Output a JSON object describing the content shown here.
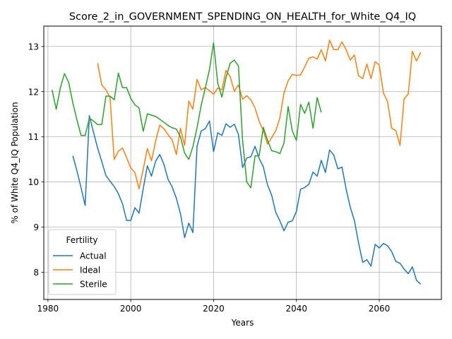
{
  "chart_data": {
    "type": "line",
    "title": "Score_2_in_GOVERNMENT_SPENDING_ON_HEALTH_for_White_Q4_IQ",
    "xlabel": "Years",
    "ylabel": "% of White Q4_IQ Population",
    "xlim": [
      1979,
      2075
    ],
    "ylim": [
      7.4,
      13.45
    ],
    "xticks": [
      1980,
      2000,
      2020,
      2040,
      2060
    ],
    "yticks": [
      8,
      9,
      10,
      11,
      12,
      13
    ],
    "grid": true,
    "legend": {
      "title": "Fertility",
      "placement": "lower-left"
    },
    "series": [
      {
        "name": "Actual",
        "color": "#1f77b4",
        "x": [
          1986,
          1987,
          1988,
          1989,
          1990,
          1991,
          1992,
          1993,
          1994,
          1995,
          1996,
          1997,
          1998,
          1999,
          2000,
          2001,
          2002,
          2003,
          2004,
          2005,
          2006,
          2007,
          2008,
          2009,
          2010,
          2011,
          2012,
          2013,
          2014,
          2015,
          2016,
          2017,
          2018,
          2019,
          2020,
          2021,
          2022,
          2023,
          2024,
          2025,
          2026,
          2027,
          2028,
          2029,
          2030,
          2031,
          2032,
          2033,
          2034,
          2035,
          2036,
          2037,
          2038,
          2039,
          2040,
          2041,
          2042,
          2043,
          2044,
          2045,
          2046,
          2047,
          2048,
          2049,
          2050,
          2051,
          2052,
          2053,
          2054,
          2055,
          2056,
          2057,
          2058,
          2059,
          2060,
          2061,
          2062,
          2063,
          2064,
          2065,
          2066,
          2067,
          2068,
          2069,
          2070
        ],
        "values": [
          10.58,
          10.25,
          9.87,
          9.48,
          11.47,
          11.1,
          10.75,
          10.45,
          10.14,
          10.02,
          9.9,
          9.74,
          9.52,
          9.15,
          9.15,
          9.43,
          9.31,
          9.85,
          10.36,
          10.13,
          10.46,
          10.61,
          10.39,
          10.06,
          9.89,
          9.64,
          9.3,
          8.77,
          9.09,
          8.88,
          10.79,
          11.13,
          11.18,
          11.35,
          10.67,
          11.09,
          11.03,
          11.29,
          11.21,
          11.28,
          11.05,
          10.32,
          10.53,
          10.56,
          10.79,
          10.52,
          10.34,
          9.94,
          9.71,
          9.33,
          9.14,
          8.92,
          9.11,
          9.14,
          9.35,
          9.84,
          9.88,
          9.95,
          10.22,
          10.13,
          10.48,
          10.21,
          10.71,
          10.6,
          10.29,
          10.33,
          9.84,
          9.44,
          9.15,
          8.65,
          8.22,
          8.28,
          8.14,
          8.62,
          8.54,
          8.64,
          8.59,
          8.46,
          8.24,
          8.2,
          8.07,
          7.97,
          8.12,
          7.82,
          7.74
        ]
      },
      {
        "name": "Ideal",
        "color": "#ff7f0e",
        "x": [
          1992,
          1993,
          1994,
          1995,
          1996,
          1997,
          1998,
          1999,
          2000,
          2001,
          2002,
          2003,
          2004,
          2005,
          2006,
          2007,
          2008,
          2009,
          2010,
          2011,
          2012,
          2013,
          2014,
          2015,
          2016,
          2017,
          2018,
          2019,
          2020,
          2021,
          2022,
          2023,
          2024,
          2025,
          2026,
          2027,
          2028,
          2029,
          2030,
          2031,
          2032,
          2033,
          2034,
          2035,
          2036,
          2037,
          2038,
          2039,
          2040,
          2041,
          2042,
          2043,
          2044,
          2045,
          2046,
          2047,
          2048,
          2049,
          2050,
          2051,
          2052,
          2053,
          2054,
          2055,
          2056,
          2057,
          2058,
          2059,
          2060,
          2061,
          2062,
          2063,
          2064,
          2065,
          2066,
          2067,
          2068,
          2069,
          2070
        ],
        "values": [
          12.63,
          12.15,
          12.04,
          11.87,
          10.5,
          10.68,
          10.75,
          10.54,
          10.31,
          10.21,
          9.85,
          10.28,
          10.74,
          10.47,
          10.9,
          11.26,
          11.18,
          11.05,
          10.93,
          10.61,
          11.19,
          10.81,
          11.79,
          11.61,
          12.27,
          12.04,
          12.09,
          12.02,
          11.94,
          12.08,
          12.04,
          12.47,
          12.33,
          12.01,
          12.15,
          11.83,
          11.91,
          11.82,
          11.64,
          11.34,
          11.14,
          10.84,
          10.98,
          11.13,
          11.42,
          11.97,
          12.24,
          12.38,
          12.36,
          12.37,
          12.55,
          12.74,
          12.77,
          12.72,
          12.93,
          12.68,
          13.14,
          12.93,
          12.93,
          13.1,
          12.93,
          12.7,
          12.81,
          12.35,
          12.29,
          12.61,
          12.29,
          12.66,
          12.59,
          11.97,
          11.78,
          11.19,
          11.14,
          10.81,
          11.84,
          11.95,
          12.89,
          12.68,
          12.87
        ]
      },
      {
        "name": "Sterile",
        "color": "#2ca02c",
        "x": [
          1981,
          1982,
          1983,
          1984,
          1985,
          1986,
          1987,
          1988,
          1989,
          1990,
          1991,
          1992,
          1993,
          1994,
          1995,
          1996,
          1997,
          1998,
          1999,
          2000,
          2001,
          2002,
          2003,
          2004,
          2005,
          2006,
          2007,
          2008,
          2009,
          2010,
          2011,
          2012,
          2013,
          2014,
          2015,
          2016,
          2017,
          2018,
          2019,
          2020,
          2021,
          2022,
          2023,
          2024,
          2025,
          2026,
          2027,
          2028,
          2029,
          2030,
          2031,
          2032,
          2033,
          2034,
          2035,
          2036,
          2037,
          2038,
          2039,
          2040,
          2041,
          2042,
          2043,
          2044,
          2045,
          2046
        ],
        "values": [
          12.04,
          11.61,
          12.09,
          12.4,
          12.21,
          11.75,
          11.38,
          11.03,
          11.03,
          11.41,
          11.35,
          11.27,
          11.27,
          11.9,
          11.9,
          11.82,
          12.41,
          12.09,
          12.09,
          11.85,
          11.71,
          11.64,
          11.12,
          11.51,
          11.48,
          11.45,
          11.39,
          11.32,
          11.25,
          11.2,
          11.17,
          11.0,
          10.64,
          10.5,
          10.78,
          11.2,
          11.7,
          12.08,
          12.49,
          13.08,
          12.19,
          11.88,
          12.31,
          12.63,
          12.7,
          12.57,
          10.92,
          10.0,
          9.87,
          10.58,
          10.58,
          11.21,
          10.93,
          10.69,
          10.67,
          10.63,
          10.86,
          11.67,
          11.13,
          10.92,
          11.72,
          11.52,
          11.77,
          11.19,
          11.87,
          11.54
        ]
      }
    ]
  }
}
